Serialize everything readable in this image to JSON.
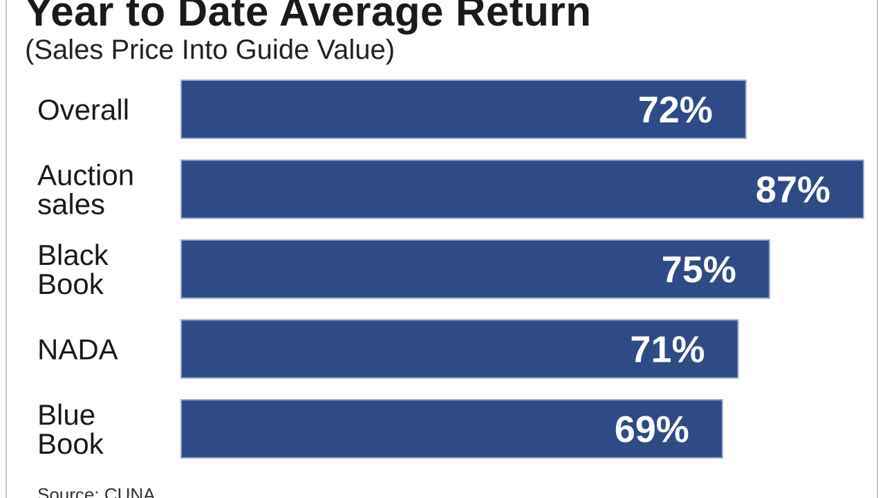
{
  "chart_data": {
    "type": "bar",
    "orientation": "horizontal",
    "title": "Year to Date Average Return",
    "subtitle": "(Sales Price Into Guide Value)",
    "categories": [
      [
        "Overall"
      ],
      [
        "Auction",
        "sales"
      ],
      [
        "Black",
        "Book"
      ],
      [
        "NADA"
      ],
      [
        "Blue",
        "Book"
      ]
    ],
    "values": [
      72,
      87,
      75,
      71,
      69
    ],
    "value_labels": [
      "72%",
      "87%",
      "75%",
      "71%",
      "69%"
    ],
    "xlim": [
      0,
      87
    ],
    "grid": false,
    "bar_color": "#2e4a87",
    "value_label_color": "#ffffff",
    "source": "Source: CUNA"
  }
}
